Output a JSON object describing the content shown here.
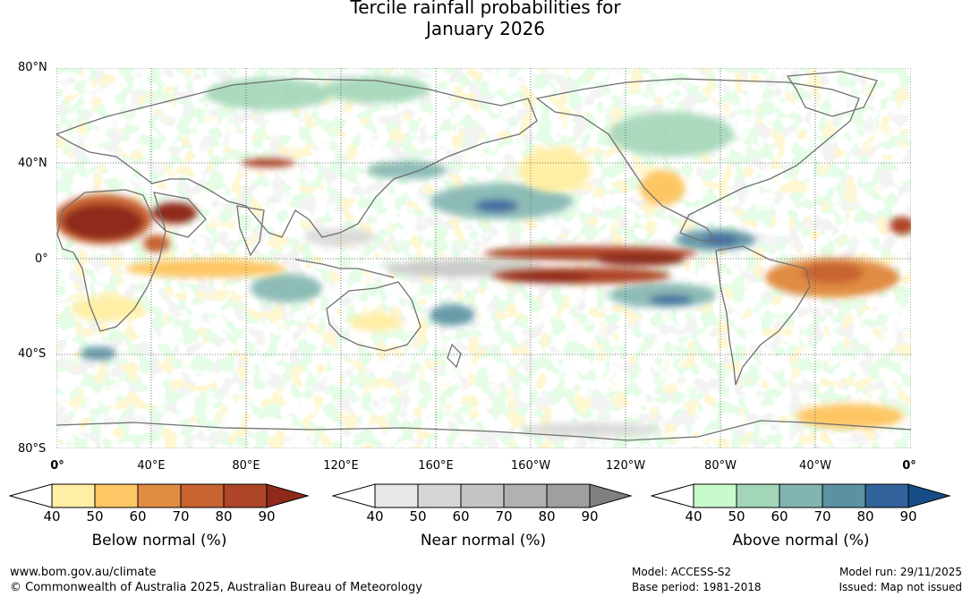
{
  "title_line1": "Tercile rainfall probabilities for",
  "title_line2": "January 2026",
  "lat_labels": [
    "80°N",
    "40°N",
    "0°",
    "40°S",
    "80°S"
  ],
  "lon_labels": [
    "0°",
    "40°E",
    "80°E",
    "120°E",
    "160°E",
    "160°W",
    "120°W",
    "80°W",
    "40°W",
    "0°"
  ],
  "legends": [
    {
      "title": "Below normal (%)",
      "ticks": [
        "40",
        "50",
        "60",
        "70",
        "80",
        "90"
      ],
      "colors": [
        "#ffeea4",
        "#fec664",
        "#e08c42",
        "#c86332",
        "#ae4528",
        "#8f2a1b"
      ]
    },
    {
      "title": "Near normal (%)",
      "ticks": [
        "40",
        "50",
        "60",
        "70",
        "80",
        "90"
      ],
      "colors": [
        "#e7e7e7",
        "#d6d6d6",
        "#c4c4c4",
        "#b1b1b1",
        "#9f9f9f",
        "#808080"
      ]
    },
    {
      "title": "Above normal (%)",
      "ticks": [
        "40",
        "50",
        "60",
        "70",
        "80",
        "90"
      ],
      "colors": [
        "#c8fbcc",
        "#a3d6b8",
        "#82b5b0",
        "#5c91a2",
        "#31629a",
        "#174d86"
      ]
    }
  ],
  "footer": {
    "website": "www.bom.gov.au/climate",
    "copyright": "© Commonwealth of Australia 2025, Australian Bureau of Meteorology",
    "model": "Model: ACCESS-S2",
    "base_period": "Base period: 1981-2018",
    "model_run": "Model run: 29/11/2025",
    "issued": "Issued: Map not issued"
  }
}
